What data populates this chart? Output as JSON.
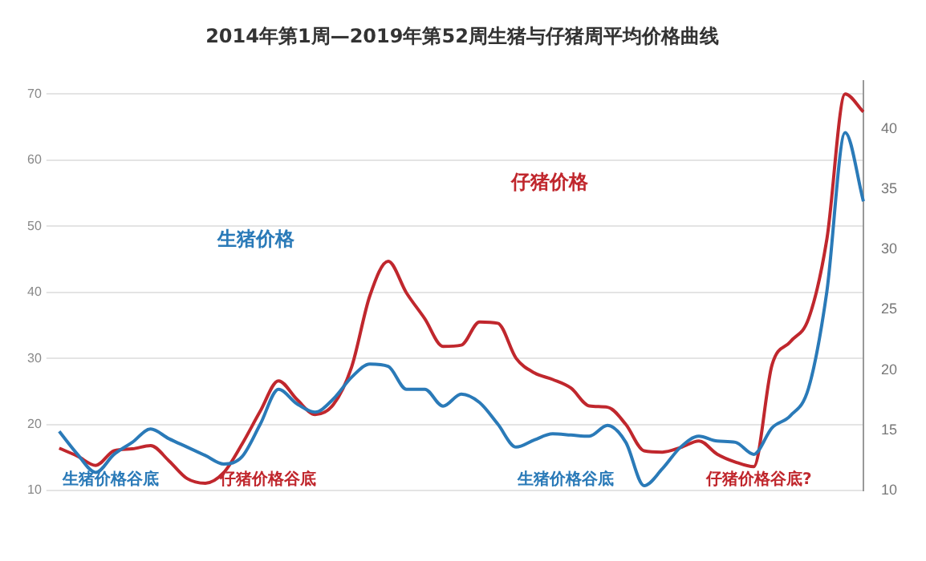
{
  "chart_data": {
    "type": "line",
    "title": "2014年第1周—2019年第52周生猪与仔猪周平均价格曲线",
    "categories": [
      null,
      null,
      null,
      null,
      null,
      null,
      null,
      null,
      null,
      null,
      null,
      null,
      null,
      null,
      null,
      null,
      null,
      null,
      null,
      null,
      null,
      null,
      null,
      null,
      null,
      null,
      null,
      null,
      null,
      null,
      null,
      null,
      null,
      null,
      null,
      null,
      null,
      null,
      null,
      null,
      null,
      null,
      null,
      null,
      null
    ],
    "series": [
      {
        "name": "生猪价格",
        "color": "#2a7ab8",
        "axis": "y2",
        "values": [
          14.9,
          13.0,
          11.5,
          13.0,
          14.0,
          15.1,
          14.3,
          13.6,
          12.9,
          12.2,
          12.8,
          15.5,
          18.4,
          17.2,
          16.5,
          17.6,
          19.4,
          20.5,
          20.3,
          18.4,
          18.4,
          17.0,
          18.0,
          17.3,
          15.5,
          13.6,
          14.2,
          14.7,
          14.6,
          14.5,
          15.4,
          14.0,
          10.4,
          11.8,
          13.6,
          14.5,
          14.1,
          14.0,
          13.0,
          15.2,
          16.2,
          18.5,
          26.5,
          39.7,
          34.0
        ]
      },
      {
        "name": "仔猪价格",
        "color": "#c0272d",
        "axis": "y",
        "values": [
          16.4,
          15.2,
          13.8,
          16.0,
          16.3,
          16.8,
          14.5,
          11.8,
          11.1,
          12.7,
          17.0,
          22.0,
          26.6,
          23.8,
          21.5,
          23.0,
          28.7,
          39.5,
          44.7,
          39.9,
          36.0,
          31.8,
          32.0,
          35.5,
          35.3,
          30.0,
          27.8,
          26.8,
          25.5,
          22.8,
          22.6,
          20.0,
          16.0,
          15.8,
          16.5,
          17.5,
          15.5,
          14.3,
          13.6,
          29.0,
          32.5,
          36.0,
          48.0,
          70.0,
          67.3
        ]
      }
    ],
    "ylim": [
      10,
      72
    ],
    "yticks": [
      10,
      20,
      30,
      40,
      50,
      60,
      70
    ],
    "y2lim": [
      10,
      44
    ],
    "y2ticks": [
      10,
      15,
      20,
      25,
      30,
      35,
      40
    ],
    "grid": "y",
    "legend": false,
    "marker": "none",
    "line_style": "solid",
    "annotations": [
      "生猪价格谷底",
      "仔猪价格谷底",
      "生猪价格谷底",
      "仔猪价格谷底?"
    ]
  }
}
